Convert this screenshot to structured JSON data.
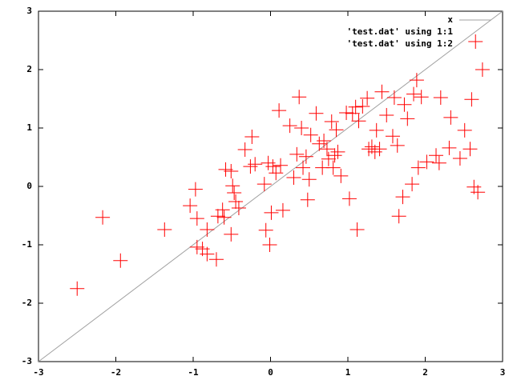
{
  "chart_data": {
    "type": "scatter",
    "grid": false,
    "legend": "top-right",
    "xlim": [
      -3,
      3
    ],
    "ylim": [
      -3,
      3
    ],
    "xticks": [
      -3,
      -2,
      -1,
      0,
      1,
      2,
      3
    ],
    "yticks": [
      -3,
      -2,
      -1,
      0,
      1,
      2,
      3
    ],
    "series": [
      {
        "name": "x",
        "color": "#a0a0a0",
        "x": [
          -3,
          3
        ],
        "values": [
          -3,
          3
        ]
      },
      {
        "name": "'test.dat' using 1:1",
        "color": "#00c000"
      },
      {
        "name": "'test.dat' using 1:2",
        "color": "#ff0000",
        "x": [
          -2.5,
          -2.17,
          -1.94,
          -1.37,
          -1.04,
          -0.97,
          -0.95,
          -0.95,
          -0.88,
          -0.82,
          -0.82,
          -0.7,
          -0.68,
          -0.62,
          -0.6,
          -0.58,
          -0.51,
          -0.51,
          -0.49,
          -0.47,
          -0.45,
          -0.41,
          -0.33,
          -0.26,
          -0.24,
          -0.2,
          -0.08,
          -0.06,
          -0.03,
          -0.01,
          0.01,
          0.03,
          0.07,
          0.11,
          0.13,
          0.16,
          0.25,
          0.3,
          0.34,
          0.37,
          0.4,
          0.42,
          0.46,
          0.48,
          0.5,
          0.52,
          0.59,
          0.63,
          0.67,
          0.69,
          0.73,
          0.75,
          0.79,
          0.81,
          0.83,
          0.85,
          0.87,
          0.91,
          0.98,
          1.02,
          1.06,
          1.1,
          1.12,
          1.14,
          1.19,
          1.25,
          1.27,
          1.31,
          1.35,
          1.37,
          1.41,
          1.44,
          1.5,
          1.58,
          1.6,
          1.64,
          1.66,
          1.71,
          1.73,
          1.77,
          1.83,
          1.85,
          1.89,
          1.91,
          1.95,
          2.02,
          2.2,
          2.14,
          2.18,
          2.31,
          2.33,
          2.45,
          2.51,
          2.58,
          2.6,
          2.63,
          2.65,
          2.68,
          2.74
        ],
        "values": [
          -1.75,
          -0.53,
          -1.27,
          -0.74,
          -0.33,
          -0.05,
          -0.55,
          -1.04,
          -1.07,
          -0.74,
          -1.16,
          -1.25,
          -0.51,
          -0.4,
          -0.53,
          0.29,
          0.26,
          -0.82,
          0.01,
          -0.11,
          -0.26,
          -0.37,
          0.63,
          0.34,
          0.85,
          0.38,
          0.04,
          -0.75,
          0.4,
          -1.0,
          -0.45,
          0.34,
          0.23,
          1.3,
          0.36,
          -0.41,
          1.04,
          0.15,
          0.55,
          1.53,
          1.0,
          0.32,
          0.51,
          -0.23,
          0.12,
          0.88,
          1.25,
          0.73,
          0.32,
          0.78,
          0.64,
          0.47,
          1.11,
          0.32,
          0.53,
          0.97,
          0.59,
          0.18,
          1.26,
          -0.21,
          1.25,
          1.36,
          -0.74,
          1.12,
          1.37,
          1.51,
          0.64,
          0.68,
          0.59,
          0.96,
          0.64,
          1.62,
          1.22,
          0.86,
          1.52,
          0.7,
          -0.51,
          -0.18,
          1.4,
          1.16,
          0.04,
          1.58,
          1.82,
          0.32,
          1.53,
          0.42,
          1.52,
          0.53,
          0.4,
          0.66,
          1.18,
          0.48,
          0.96,
          0.64,
          1.49,
          -0.01,
          2.48,
          -0.1,
          2.0
        ]
      }
    ]
  }
}
